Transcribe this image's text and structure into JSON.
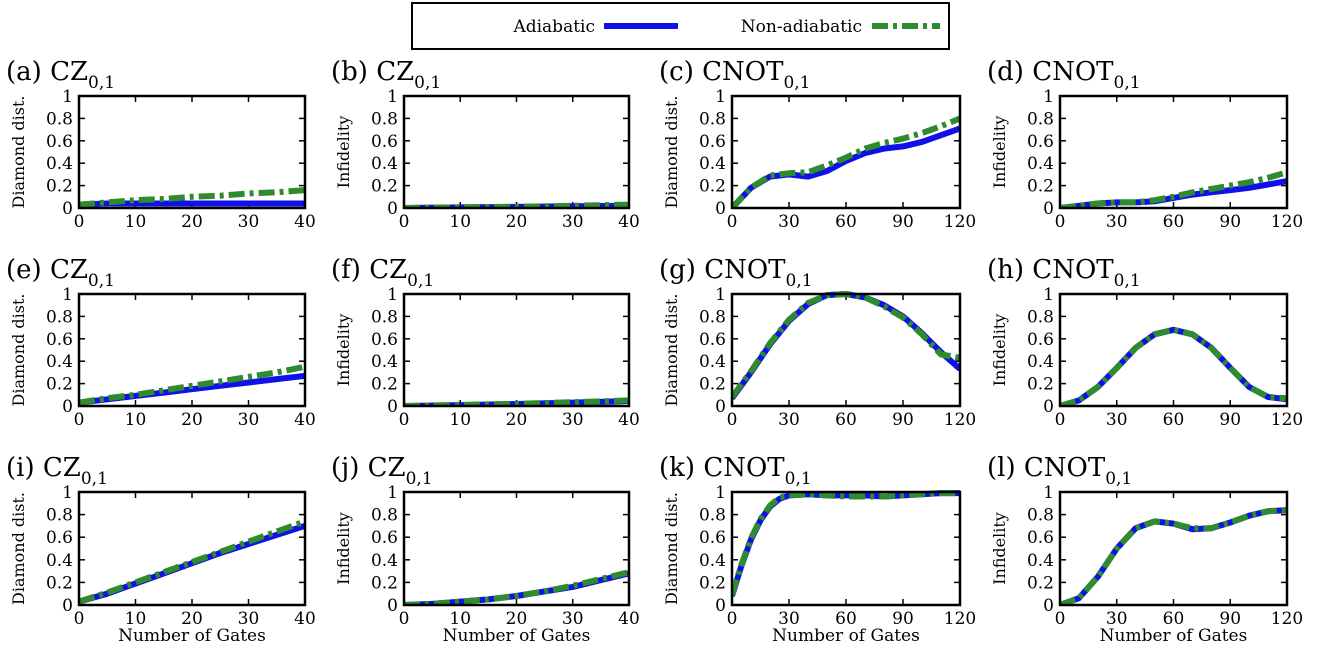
{
  "colors": {
    "adiabatic": "#1010e8",
    "non_adiabatic": "#2e8b2e",
    "frame": "#000000"
  },
  "legend": {
    "adiabatic": "Adiabatic",
    "non_adiabatic": "Non-adiabatic"
  },
  "chart_data": [
    {
      "id": "a",
      "label": "(a)",
      "title": "CZ",
      "subscript": "0,1",
      "type": "line",
      "ylabel": "Diamond dist.",
      "xlabel": "",
      "xlim": [
        0,
        40
      ],
      "ylim": [
        0,
        1
      ],
      "xticks": [
        "0",
        "10",
        "20",
        "30",
        "40"
      ],
      "yticks": [
        "0",
        "0.2",
        "0.4",
        "0.6",
        "0.8",
        "1"
      ],
      "x": [
        0,
        5,
        10,
        15,
        20,
        25,
        30,
        35,
        40
      ],
      "series": [
        {
          "name": "Adiabatic",
          "values": [
            0.03,
            0.04,
            0.04,
            0.04,
            0.04,
            0.04,
            0.04,
            0.04,
            0.04
          ]
        },
        {
          "name": "Non-adiabatic",
          "values": [
            0.03,
            0.05,
            0.07,
            0.08,
            0.1,
            0.11,
            0.13,
            0.14,
            0.16
          ]
        }
      ]
    },
    {
      "id": "b",
      "label": "(b)",
      "title": "CZ",
      "subscript": "0,1",
      "type": "line",
      "ylabel": "Infidelity",
      "xlabel": "",
      "xlim": [
        0,
        40
      ],
      "ylim": [
        0,
        1
      ],
      "xticks": [
        "0",
        "10",
        "20",
        "30",
        "40"
      ],
      "yticks": [
        "0",
        "0.2",
        "0.4",
        "0.6",
        "0.8",
        "1"
      ],
      "x": [
        0,
        10,
        20,
        30,
        40
      ],
      "series": [
        {
          "name": "Adiabatic",
          "values": [
            0.0,
            0.005,
            0.01,
            0.015,
            0.02
          ]
        },
        {
          "name": "Non-adiabatic",
          "values": [
            0.0,
            0.006,
            0.012,
            0.02,
            0.03
          ]
        }
      ]
    },
    {
      "id": "c",
      "label": "(c)",
      "title": "CNOT",
      "subscript": "0,1",
      "type": "line",
      "ylabel": "Diamond dist.",
      "xlabel": "",
      "xlim": [
        0,
        120
      ],
      "ylim": [
        0,
        1
      ],
      "xticks": [
        "0",
        "30",
        "60",
        "90",
        "120"
      ],
      "yticks": [
        "0",
        "0.2",
        "0.4",
        "0.6",
        "0.8",
        "1"
      ],
      "x": [
        0,
        10,
        20,
        30,
        40,
        50,
        60,
        70,
        80,
        90,
        100,
        110,
        120
      ],
      "series": [
        {
          "name": "Adiabatic",
          "values": [
            0.0,
            0.18,
            0.28,
            0.3,
            0.28,
            0.33,
            0.42,
            0.49,
            0.53,
            0.55,
            0.59,
            0.65,
            0.71
          ]
        },
        {
          "name": "Non-adiabatic",
          "values": [
            0.0,
            0.18,
            0.29,
            0.31,
            0.32,
            0.38,
            0.45,
            0.53,
            0.58,
            0.62,
            0.67,
            0.73,
            0.8
          ]
        }
      ]
    },
    {
      "id": "d",
      "label": "(d)",
      "title": "CNOT",
      "subscript": "0,1",
      "type": "line",
      "ylabel": "Infidelity",
      "xlabel": "",
      "xlim": [
        0,
        120
      ],
      "ylim": [
        0,
        1
      ],
      "xticks": [
        "0",
        "30",
        "60",
        "90",
        "120"
      ],
      "yticks": [
        "0",
        "0.2",
        "0.4",
        "0.6",
        "0.8",
        "1"
      ],
      "x": [
        0,
        10,
        20,
        30,
        40,
        50,
        60,
        70,
        80,
        90,
        100,
        110,
        120
      ],
      "series": [
        {
          "name": "Adiabatic",
          "values": [
            0.0,
            0.02,
            0.04,
            0.05,
            0.05,
            0.06,
            0.09,
            0.12,
            0.14,
            0.16,
            0.18,
            0.21,
            0.24
          ]
        },
        {
          "name": "Non-adiabatic",
          "values": [
            0.0,
            0.02,
            0.04,
            0.05,
            0.05,
            0.07,
            0.1,
            0.14,
            0.17,
            0.2,
            0.23,
            0.27,
            0.32
          ]
        }
      ]
    },
    {
      "id": "e",
      "label": "(e)",
      "title": "CZ",
      "subscript": "0,1",
      "type": "line",
      "ylabel": "Diamond dist.",
      "xlabel": "",
      "xlim": [
        0,
        40
      ],
      "ylim": [
        0,
        1
      ],
      "xticks": [
        "0",
        "10",
        "20",
        "30",
        "40"
      ],
      "yticks": [
        "0",
        "0.2",
        "0.4",
        "0.6",
        "0.8",
        "1"
      ],
      "x": [
        0,
        5,
        10,
        15,
        20,
        25,
        30,
        35,
        40
      ],
      "series": [
        {
          "name": "Adiabatic",
          "values": [
            0.03,
            0.06,
            0.09,
            0.12,
            0.15,
            0.18,
            0.21,
            0.24,
            0.27
          ]
        },
        {
          "name": "Non-adiabatic",
          "values": [
            0.03,
            0.07,
            0.1,
            0.14,
            0.18,
            0.22,
            0.26,
            0.3,
            0.35
          ]
        }
      ]
    },
    {
      "id": "f",
      "label": "(f)",
      "title": "CZ",
      "subscript": "0,1",
      "type": "line",
      "ylabel": "Infidelity",
      "xlabel": "",
      "xlim": [
        0,
        40
      ],
      "ylim": [
        0,
        1
      ],
      "xticks": [
        "0",
        "10",
        "20",
        "30",
        "40"
      ],
      "yticks": [
        "0",
        "0.2",
        "0.4",
        "0.6",
        "0.8",
        "1"
      ],
      "x": [
        0,
        10,
        20,
        30,
        40
      ],
      "series": [
        {
          "name": "Adiabatic",
          "values": [
            0.0,
            0.008,
            0.018,
            0.03,
            0.045
          ]
        },
        {
          "name": "Non-adiabatic",
          "values": [
            0.0,
            0.01,
            0.02,
            0.034,
            0.05
          ]
        }
      ]
    },
    {
      "id": "g",
      "label": "(g)",
      "title": "CNOT",
      "subscript": "0,1",
      "type": "line",
      "ylabel": "Diamond dist.",
      "xlabel": "",
      "xlim": [
        0,
        120
      ],
      "ylim": [
        0,
        1
      ],
      "xticks": [
        "0",
        "30",
        "60",
        "90",
        "120"
      ],
      "yticks": [
        "0",
        "0.2",
        "0.4",
        "0.6",
        "0.8",
        "1"
      ],
      "x": [
        0,
        10,
        20,
        30,
        40,
        50,
        60,
        70,
        80,
        90,
        100,
        110,
        120
      ],
      "series": [
        {
          "name": "Adiabatic",
          "values": [
            0.07,
            0.3,
            0.55,
            0.76,
            0.91,
            0.99,
            1.0,
            0.97,
            0.9,
            0.8,
            0.65,
            0.48,
            0.33
          ]
        },
        {
          "name": "Non-adiabatic",
          "values": [
            0.08,
            0.31,
            0.56,
            0.77,
            0.92,
            0.99,
            1.0,
            0.97,
            0.89,
            0.79,
            0.64,
            0.46,
            0.43
          ]
        }
      ]
    },
    {
      "id": "h",
      "label": "(h)",
      "title": "CNOT",
      "subscript": "0,1",
      "type": "line",
      "ylabel": "Infidelity",
      "xlabel": "",
      "xlim": [
        0,
        120
      ],
      "ylim": [
        0,
        1
      ],
      "xticks": [
        "0",
        "30",
        "60",
        "90",
        "120"
      ],
      "yticks": [
        "0",
        "0.2",
        "0.4",
        "0.6",
        "0.8",
        "1"
      ],
      "x": [
        0,
        10,
        20,
        30,
        40,
        50,
        60,
        70,
        80,
        90,
        100,
        110,
        120
      ],
      "series": [
        {
          "name": "Adiabatic",
          "values": [
            0.0,
            0.05,
            0.17,
            0.34,
            0.52,
            0.64,
            0.68,
            0.64,
            0.52,
            0.34,
            0.17,
            0.08,
            0.06
          ]
        },
        {
          "name": "Non-adiabatic",
          "values": [
            0.0,
            0.05,
            0.17,
            0.34,
            0.52,
            0.64,
            0.68,
            0.64,
            0.52,
            0.34,
            0.17,
            0.08,
            0.07
          ]
        }
      ]
    },
    {
      "id": "i",
      "label": "(i)",
      "title": "CZ",
      "subscript": "0,1",
      "type": "line",
      "ylabel": "Diamond dist.",
      "xlabel": "Number of Gates",
      "xlim": [
        0,
        40
      ],
      "ylim": [
        0,
        1
      ],
      "xticks": [
        "0",
        "10",
        "20",
        "30",
        "40"
      ],
      "yticks": [
        "0",
        "0.2",
        "0.4",
        "0.6",
        "0.8",
        "1"
      ],
      "x": [
        0,
        5,
        10,
        15,
        20,
        25,
        30,
        35,
        40
      ],
      "series": [
        {
          "name": "Adiabatic",
          "values": [
            0.03,
            0.1,
            0.19,
            0.28,
            0.37,
            0.46,
            0.54,
            0.62,
            0.7
          ]
        },
        {
          "name": "Non-adiabatic",
          "values": [
            0.03,
            0.11,
            0.2,
            0.29,
            0.38,
            0.47,
            0.56,
            0.65,
            0.74
          ]
        }
      ]
    },
    {
      "id": "j",
      "label": "(j)",
      "title": "CZ",
      "subscript": "0,1",
      "type": "line",
      "ylabel": "Infidelity",
      "xlabel": "Number of Gates",
      "xlim": [
        0,
        40
      ],
      "ylim": [
        0,
        1
      ],
      "xticks": [
        "0",
        "10",
        "20",
        "30",
        "40"
      ],
      "yticks": [
        "0",
        "0.2",
        "0.4",
        "0.6",
        "0.8",
        "1"
      ],
      "x": [
        0,
        5,
        10,
        15,
        20,
        25,
        30,
        35,
        40
      ],
      "series": [
        {
          "name": "Adiabatic",
          "values": [
            0.0,
            0.01,
            0.03,
            0.05,
            0.08,
            0.12,
            0.16,
            0.22,
            0.28
          ]
        },
        {
          "name": "Non-adiabatic",
          "values": [
            0.0,
            0.01,
            0.03,
            0.05,
            0.08,
            0.12,
            0.17,
            0.23,
            0.29
          ]
        }
      ]
    },
    {
      "id": "k",
      "label": "(k)",
      "title": "CNOT",
      "subscript": "0,1",
      "type": "line",
      "ylabel": "Diamond dist.",
      "xlabel": "Number of Gates",
      "xlim": [
        0,
        120
      ],
      "ylim": [
        0,
        1
      ],
      "xticks": [
        "0",
        "30",
        "60",
        "90",
        "120"
      ],
      "yticks": [
        "0",
        "0.2",
        "0.4",
        "0.6",
        "0.8",
        "1"
      ],
      "x": [
        0,
        5,
        10,
        15,
        20,
        25,
        30,
        40,
        50,
        60,
        70,
        80,
        90,
        100,
        110,
        120
      ],
      "series": [
        {
          "name": "Adiabatic",
          "values": [
            0.08,
            0.35,
            0.58,
            0.75,
            0.87,
            0.94,
            0.97,
            0.98,
            0.97,
            0.97,
            0.97,
            0.96,
            0.97,
            0.98,
            0.99,
            0.99
          ]
        },
        {
          "name": "Non-adiabatic",
          "values": [
            0.09,
            0.36,
            0.59,
            0.76,
            0.88,
            0.95,
            0.97,
            0.98,
            0.97,
            0.96,
            0.96,
            0.96,
            0.97,
            0.98,
            0.99,
            0.99
          ]
        }
      ]
    },
    {
      "id": "l",
      "label": "(l)",
      "title": "CNOT",
      "subscript": "0,1",
      "type": "line",
      "ylabel": "Infidelity",
      "xlabel": "Number of Gates",
      "xlim": [
        0,
        120
      ],
      "ylim": [
        0,
        1
      ],
      "xticks": [
        "0",
        "30",
        "60",
        "90",
        "120"
      ],
      "yticks": [
        "0",
        "0.2",
        "0.4",
        "0.6",
        "0.8",
        "1"
      ],
      "x": [
        0,
        10,
        20,
        30,
        40,
        50,
        60,
        70,
        80,
        90,
        100,
        110,
        120
      ],
      "series": [
        {
          "name": "Adiabatic",
          "values": [
            0.0,
            0.06,
            0.25,
            0.5,
            0.68,
            0.74,
            0.72,
            0.67,
            0.68,
            0.73,
            0.79,
            0.83,
            0.84
          ]
        },
        {
          "name": "Non-adiabatic",
          "values": [
            0.0,
            0.06,
            0.25,
            0.5,
            0.68,
            0.74,
            0.72,
            0.68,
            0.68,
            0.73,
            0.79,
            0.83,
            0.84
          ]
        }
      ]
    }
  ]
}
